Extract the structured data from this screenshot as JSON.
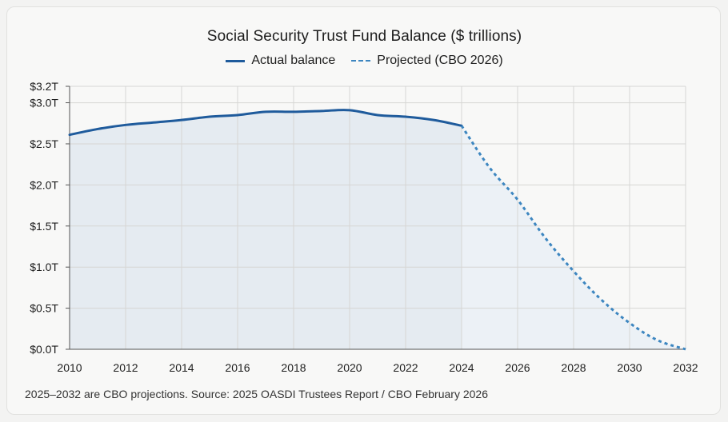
{
  "chart_data": {
    "type": "line",
    "title": "Social Security Trust Fund Balance ($ trillions)",
    "xlabel": "",
    "ylabel": "",
    "xlim": [
      2010,
      2032
    ],
    "ylim": [
      0,
      3.2
    ],
    "x_ticks": [
      "2010",
      "2012",
      "2014",
      "2016",
      "2018",
      "2020",
      "2022",
      "2024",
      "2026",
      "2028",
      "2030",
      "2032"
    ],
    "x_tick_values": [
      2010,
      2012,
      2014,
      2016,
      2018,
      2020,
      2022,
      2024,
      2026,
      2028,
      2030,
      2032
    ],
    "y_ticks": [
      "$0.0T",
      "$0.5T",
      "$1.0T",
      "$1.5T",
      "$2.0T",
      "$2.5T",
      "$3.0T",
      "$3.2T"
    ],
    "y_tick_values": [
      0,
      0.5,
      1.0,
      1.5,
      2.0,
      2.5,
      3.0,
      3.2
    ],
    "grid": true,
    "legend_position": "top-center",
    "series": [
      {
        "name": "Actual balance",
        "style": "solid",
        "color": "#1f5b9c",
        "x": [
          2010,
          2011,
          2012,
          2013,
          2014,
          2015,
          2016,
          2017,
          2018,
          2019,
          2020,
          2021,
          2022,
          2023,
          2024
        ],
        "y": [
          2.61,
          2.68,
          2.73,
          2.76,
          2.79,
          2.83,
          2.85,
          2.89,
          2.89,
          2.9,
          2.91,
          2.85,
          2.83,
          2.79,
          2.72
        ]
      },
      {
        "name": "Projected (CBO 2026)",
        "style": "dashed",
        "color": "#3d86c0",
        "x": [
          2024,
          2025,
          2026,
          2027,
          2028,
          2029,
          2030,
          2031,
          2032
        ],
        "y": [
          2.72,
          2.21,
          1.82,
          1.35,
          0.95,
          0.6,
          0.32,
          0.11,
          0.0
        ]
      }
    ]
  },
  "footnote": "2025–2032 are CBO projections. Source: 2025 OASDI Trustees Report / CBO February 2026",
  "colors": {
    "actual_fill": "#e5ebf1",
    "projected_fill": "#ecf1f6",
    "grid": "#d6d6d4"
  }
}
